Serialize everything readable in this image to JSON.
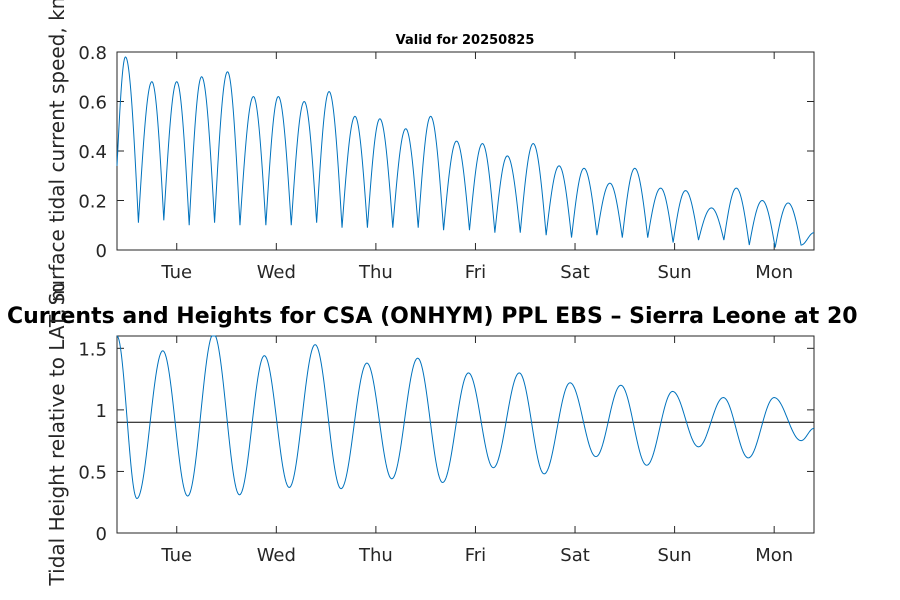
{
  "chart_data": [
    {
      "type": "line",
      "title": "Valid for 20250825",
      "xlabel": "",
      "ylabel": "Surface tidal current speed, kn",
      "ylim": [
        0,
        0.8
      ],
      "yticks": [
        0,
        0.2,
        0.4,
        0.6,
        0.8
      ],
      "ytick_labels": [
        "0",
        "0.2",
        "0.4",
        "0.6",
        "0.8"
      ],
      "xlim_days": [
        -0.6,
        6.4
      ],
      "xtick_labels": [
        "Tue",
        "Wed",
        "Thu",
        "Fri",
        "Sat",
        "Sun",
        "Mon"
      ],
      "grid": false,
      "color": "#0072bd",
      "peaks": [
        {
          "x": -0.515,
          "y": 0.78
        },
        {
          "x": -0.25,
          "y": 0.68
        },
        {
          "x": 0.0,
          "y": 0.68
        },
        {
          "x": 0.25,
          "y": 0.7
        },
        {
          "x": 0.51,
          "y": 0.72
        },
        {
          "x": 0.77,
          "y": 0.62
        },
        {
          "x": 1.02,
          "y": 0.62
        },
        {
          "x": 1.28,
          "y": 0.6
        },
        {
          "x": 1.53,
          "y": 0.64
        },
        {
          "x": 1.79,
          "y": 0.54
        },
        {
          "x": 2.04,
          "y": 0.53
        },
        {
          "x": 2.3,
          "y": 0.49
        },
        {
          "x": 2.55,
          "y": 0.54
        },
        {
          "x": 2.81,
          "y": 0.44
        },
        {
          "x": 3.07,
          "y": 0.43
        },
        {
          "x": 3.32,
          "y": 0.38
        },
        {
          "x": 3.58,
          "y": 0.43
        },
        {
          "x": 3.84,
          "y": 0.34
        },
        {
          "x": 4.09,
          "y": 0.33
        },
        {
          "x": 4.35,
          "y": 0.27
        },
        {
          "x": 4.6,
          "y": 0.33
        },
        {
          "x": 4.86,
          "y": 0.25
        },
        {
          "x": 5.11,
          "y": 0.24
        },
        {
          "x": 5.37,
          "y": 0.17
        },
        {
          "x": 5.62,
          "y": 0.25
        },
        {
          "x": 5.88,
          "y": 0.2
        },
        {
          "x": 6.14,
          "y": 0.19
        }
      ],
      "troughs": [
        {
          "x": -0.6,
          "y": 0.34
        },
        {
          "x": -0.385,
          "y": 0.11
        },
        {
          "x": -0.13,
          "y": 0.12
        },
        {
          "x": 0.125,
          "y": 0.1
        },
        {
          "x": 0.38,
          "y": 0.11
        },
        {
          "x": 0.635,
          "y": 0.1
        },
        {
          "x": 0.895,
          "y": 0.1
        },
        {
          "x": 1.15,
          "y": 0.1
        },
        {
          "x": 1.405,
          "y": 0.11
        },
        {
          "x": 1.66,
          "y": 0.09
        },
        {
          "x": 1.915,
          "y": 0.09
        },
        {
          "x": 2.17,
          "y": 0.09
        },
        {
          "x": 2.425,
          "y": 0.09
        },
        {
          "x": 2.68,
          "y": 0.08
        },
        {
          "x": 2.94,
          "y": 0.08
        },
        {
          "x": 3.195,
          "y": 0.07
        },
        {
          "x": 3.45,
          "y": 0.07
        },
        {
          "x": 3.71,
          "y": 0.06
        },
        {
          "x": 3.965,
          "y": 0.05
        },
        {
          "x": 4.22,
          "y": 0.06
        },
        {
          "x": 4.475,
          "y": 0.05
        },
        {
          "x": 4.73,
          "y": 0.05
        },
        {
          "x": 4.985,
          "y": 0.03
        },
        {
          "x": 5.24,
          "y": 0.04
        },
        {
          "x": 5.495,
          "y": 0.04
        },
        {
          "x": 5.75,
          "y": 0.02
        },
        {
          "x": 6.01,
          "y": 0.01
        },
        {
          "x": 6.27,
          "y": 0.02
        },
        {
          "x": 6.4,
          "y": 0.07
        }
      ]
    },
    {
      "type": "line",
      "title": "Currents and Heights for CSA (ONHYM) PPL EBS  – Sierra Leone at 20",
      "xlabel": "",
      "ylabel": "Tidal Height relative to LAT, m",
      "ylim": [
        0,
        1.6
      ],
      "yticks": [
        0,
        0.5,
        1,
        1.5
      ],
      "ytick_labels": [
        "0",
        "0.5",
        "1",
        "1.5"
      ],
      "xlim_days": [
        -0.6,
        6.4
      ],
      "xtick_labels": [
        "Tue",
        "Wed",
        "Thu",
        "Fri",
        "Sat",
        "Sun",
        "Mon"
      ],
      "grid": false,
      "color": "#0072bd",
      "reference_line": 0.9,
      "reference_color": "#000000",
      "extrema": [
        {
          "x": -0.6,
          "y": 1.6
        },
        {
          "x": -0.4,
          "y": 0.28
        },
        {
          "x": -0.14,
          "y": 1.48
        },
        {
          "x": 0.11,
          "y": 0.3
        },
        {
          "x": 0.37,
          "y": 1.62
        },
        {
          "x": 0.63,
          "y": 0.31
        },
        {
          "x": 0.88,
          "y": 1.44
        },
        {
          "x": 1.13,
          "y": 0.37
        },
        {
          "x": 1.39,
          "y": 1.53
        },
        {
          "x": 1.65,
          "y": 0.36
        },
        {
          "x": 1.91,
          "y": 1.38
        },
        {
          "x": 2.16,
          "y": 0.44
        },
        {
          "x": 2.42,
          "y": 1.42
        },
        {
          "x": 2.67,
          "y": 0.41
        },
        {
          "x": 2.93,
          "y": 1.3
        },
        {
          "x": 3.18,
          "y": 0.53
        },
        {
          "x": 3.44,
          "y": 1.3
        },
        {
          "x": 3.69,
          "y": 0.48
        },
        {
          "x": 3.95,
          "y": 1.22
        },
        {
          "x": 4.21,
          "y": 0.62
        },
        {
          "x": 4.46,
          "y": 1.2
        },
        {
          "x": 4.72,
          "y": 0.55
        },
        {
          "x": 4.98,
          "y": 1.15
        },
        {
          "x": 5.24,
          "y": 0.7
        },
        {
          "x": 5.49,
          "y": 1.1
        },
        {
          "x": 5.74,
          "y": 0.61
        },
        {
          "x": 6.0,
          "y": 1.1
        },
        {
          "x": 6.27,
          "y": 0.75
        },
        {
          "x": 6.4,
          "y": 0.85
        }
      ]
    }
  ]
}
